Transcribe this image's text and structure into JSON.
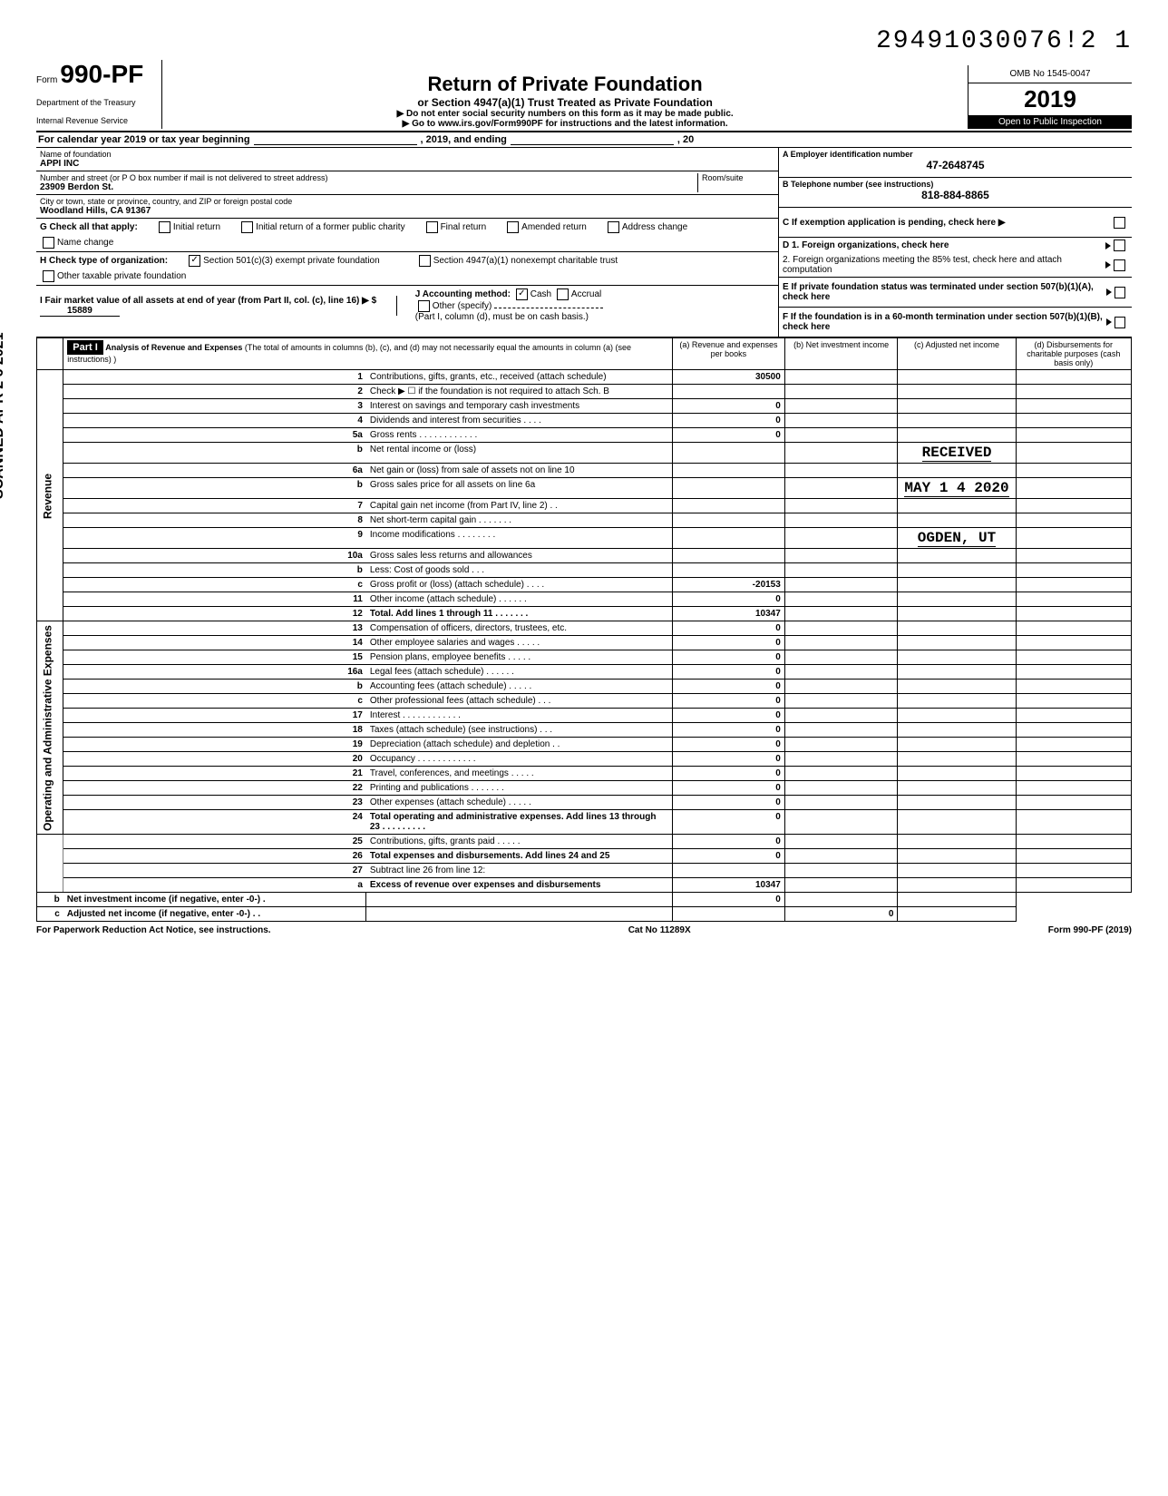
{
  "top_id": "29491030076!2  1",
  "form": {
    "prefix": "Form",
    "number": "990-PF",
    "dept1": "Department of the Treasury",
    "dept2": "Internal Revenue Service"
  },
  "title": {
    "main": "Return of Private Foundation",
    "sub": "or Section 4947(a)(1) Trust Treated as Private Foundation",
    "line1": "▶ Do not enter social security numbers on this form as it may be made public.",
    "line2": "▶ Go to www.irs.gov/Form990PF for instructions and the latest information."
  },
  "yearbox": {
    "omb": "OMB No 1545-0047",
    "year": "2019",
    "inspection": "Open to Public Inspection"
  },
  "cal_line": {
    "prefix": "For calendar year 2019 or tax year beginning",
    "mid": ", 2019, and ending",
    "suffix": ", 20"
  },
  "info": {
    "name_label": "Name of foundation",
    "name": "APPI INC",
    "addr_label": "Number and street (or P O  box number if mail is not delivered to street address)",
    "room_label": "Room/suite",
    "addr": "23909 Berdon St.",
    "city_label": "City or town, state or province, country, and ZIP or foreign postal code",
    "city": "Woodland Hills, CA 91367",
    "ein_label": "A  Employer identification number",
    "ein": "47-2648745",
    "tel_label": "B  Telephone number (see instructions)",
    "tel": "818-884-8865",
    "c": "C  If exemption application is pending, check here ▶",
    "d1": "D  1. Foreign organizations, check here",
    "d2": "2. Foreign organizations meeting the 85% test, check here and attach computation",
    "e": "E  If private foundation status was terminated under section 507(b)(1)(A), check here",
    "f": "F  If the foundation is in a 60-month termination under section 507(b)(1)(B), check here"
  },
  "g": {
    "label": "G  Check all that apply:",
    "opts": [
      "Initial return",
      "Initial return of a former public charity",
      "Final return",
      "Amended return",
      "Address change",
      "Name change"
    ]
  },
  "h": {
    "label": "H  Check type of organization:",
    "opt1": "Section 501(c)(3) exempt private foundation",
    "opt2": "Section 4947(a)(1) nonexempt charitable trust",
    "opt3": "Other taxable private foundation"
  },
  "i": {
    "label": "I  Fair market value of all assets at end of year  (from Part II, col. (c), line 16) ▶ $",
    "value": "15889"
  },
  "j": {
    "label": "J  Accounting method:",
    "cash": "Cash",
    "accrual": "Accrual",
    "other": "Other (specify)",
    "note": "(Part I, column (d), must be on cash basis.)"
  },
  "part1": {
    "header": "Part I",
    "title": "Analysis of Revenue and Expenses",
    "desc": "(The total of amounts in columns (b), (c), and (d) may not necessarily equal the amounts in column (a) (see instructions) )",
    "cols": {
      "a": "(a) Revenue and expenses per books",
      "b": "(b) Net investment income",
      "c": "(c) Adjusted net income",
      "d": "(d) Disbursements for charitable purposes (cash basis only)"
    }
  },
  "sections": {
    "revenue": "Revenue",
    "operating": "Operating and Administrative Expenses"
  },
  "rows": [
    {
      "n": "1",
      "d": "Contributions, gifts, grants, etc., received (attach schedule)",
      "a": "30500",
      "shade_bcd": false
    },
    {
      "n": "2",
      "d": "Check ▶ ☐ if the foundation is not required to attach Sch. B",
      "a": "",
      "all_shade": true
    },
    {
      "n": "3",
      "d": "Interest on savings and temporary cash investments",
      "a": "0"
    },
    {
      "n": "4",
      "d": "Dividends and interest from securities  .  .  .  .",
      "a": "0"
    },
    {
      "n": "5a",
      "d": "Gross rents  .  .  .  .  .  .  .  .  .  .  .  .",
      "a": "0"
    },
    {
      "n": "b",
      "d": "Net rental income or (loss)",
      "a": "",
      "stamp_c": "RECEIVED"
    },
    {
      "n": "6a",
      "d": "Net gain or (loss) from sale of assets not on line 10",
      "a": ""
    },
    {
      "n": "b",
      "d": "Gross sales price for all assets on line 6a",
      "a": "",
      "stamp_c": "MAY 1 4 2020"
    },
    {
      "n": "7",
      "d": "Capital gain net income (from Part IV, line 2)  .  .",
      "a": ""
    },
    {
      "n": "8",
      "d": "Net short-term capital gain  .  .  .  .  .  .  .",
      "a": ""
    },
    {
      "n": "9",
      "d": "Income modifications   .  .  .  .  .  .  .  .",
      "a": "",
      "stamp_c": "OGDEN, UT"
    },
    {
      "n": "10a",
      "d": "Gross sales less returns and allowances",
      "a": ""
    },
    {
      "n": "b",
      "d": "Less: Cost of goods sold  .  .  .",
      "a": ""
    },
    {
      "n": "c",
      "d": "Gross profit or (loss) (attach schedule)  .  .  .  .",
      "a": "-20153"
    },
    {
      "n": "11",
      "d": "Other income (attach schedule)  .  .  .  .  .  .",
      "a": "0"
    },
    {
      "n": "12",
      "d": "Total. Add lines 1 through 11  .  .  .  .  .  .  .",
      "a": "10347",
      "bold": true
    },
    {
      "n": "13",
      "d": "Compensation of officers, directors, trustees, etc.",
      "a": "0"
    },
    {
      "n": "14",
      "d": "Other employee salaries and wages .  .  .  .  .",
      "a": "0"
    },
    {
      "n": "15",
      "d": "Pension plans, employee benefits   .  .  .  .  .",
      "a": "0"
    },
    {
      "n": "16a",
      "d": "Legal fees (attach schedule)   .  .  .  .  .  .",
      "a": "0"
    },
    {
      "n": "b",
      "d": "Accounting fees (attach schedule)  .  .  .  .  .",
      "a": "0"
    },
    {
      "n": "c",
      "d": "Other professional fees (attach schedule)  .  .  .",
      "a": "0"
    },
    {
      "n": "17",
      "d": "Interest  .  .  .  .  .   .  .  .  .  .  .  .",
      "a": "0"
    },
    {
      "n": "18",
      "d": "Taxes (attach schedule) (see instructions)  .  .  .",
      "a": "0"
    },
    {
      "n": "19",
      "d": "Depreciation (attach schedule) and depletion .  .",
      "a": "0"
    },
    {
      "n": "20",
      "d": "Occupancy .  .  .  .  .  .  .  .  .  .  .  .",
      "a": "0"
    },
    {
      "n": "21",
      "d": "Travel, conferences, and meetings  .  .  .  .  .",
      "a": "0"
    },
    {
      "n": "22",
      "d": "Printing and publications   .  .  .  .  .  .  .",
      "a": "0"
    },
    {
      "n": "23",
      "d": "Other expenses (attach schedule)  .  .  .  .  .",
      "a": "0"
    },
    {
      "n": "24",
      "d": "Total operating and administrative expenses. Add lines 13 through 23 .  .  .  .  .  .  .  .  .",
      "a": "0",
      "bold": true
    },
    {
      "n": "25",
      "d": "Contributions, gifts, grants paid   .  .  .  .  .",
      "a": "0"
    },
    {
      "n": "26",
      "d": "Total expenses and disbursements. Add lines 24 and 25",
      "a": "0",
      "bold": true
    },
    {
      "n": "27",
      "d": "Subtract line 26 from line 12:",
      "a": ""
    },
    {
      "n": "a",
      "d": "Excess of revenue over expenses and disbursements",
      "a": "10347",
      "bold": true
    },
    {
      "n": "b",
      "d": "Net investment income (if negative, enter -0-)  .",
      "a": "",
      "b": "0",
      "bold": true
    },
    {
      "n": "c",
      "d": "Adjusted net income (if negative, enter -0-)  .  .",
      "a": "",
      "c": "0",
      "bold": true
    }
  ],
  "footer": {
    "left": "For Paperwork Reduction Act Notice, see instructions.",
    "mid": "Cat No 11289X",
    "right": "Form 990-PF (2019)"
  },
  "side_stamp": "SCANNED APR 2 6 2021",
  "colors": {
    "black": "#000000",
    "white": "#ffffff",
    "shade": "#cccccc"
  }
}
